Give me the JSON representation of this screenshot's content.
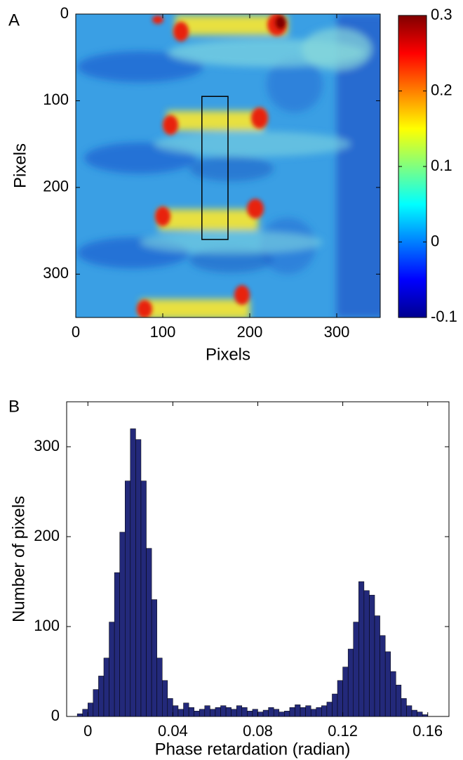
{
  "chart_data": [
    {
      "type": "heatmap",
      "panel_label": "A",
      "x_label": "Pixels",
      "y_label": "Pixels",
      "xlim": [
        0,
        350
      ],
      "ylim": [
        0,
        350
      ],
      "y_inverted": true,
      "xticks": [
        0,
        100,
        200,
        300
      ],
      "yticks": [
        0,
        100,
        200,
        300
      ],
      "colorbar": {
        "lim": [
          -0.1,
          0.3
        ],
        "ticks": [
          -0.1,
          0,
          0.1,
          0.2,
          0.3
        ]
      },
      "roi": {
        "x": [
          145,
          175
        ],
        "y": [
          95,
          260
        ],
        "color": "#000000"
      }
    },
    {
      "type": "histogram",
      "panel_label": "B",
      "x_label": "Phase retardation (radian)",
      "y_label": "Number of pixels",
      "xlim": [
        -0.01,
        0.17
      ],
      "ylim": [
        0,
        350
      ],
      "xticks": [
        0,
        0.04,
        0.08,
        0.12,
        0.16
      ],
      "yticks": [
        0,
        100,
        200,
        300
      ],
      "color": "#23297a",
      "bins": [
        -0.005,
        -0.0025,
        0,
        0.0025,
        0.005,
        0.0075,
        0.01,
        0.0125,
        0.015,
        0.0175,
        0.02,
        0.0225,
        0.025,
        0.0275,
        0.03,
        0.0325,
        0.035,
        0.0375,
        0.04,
        0.0425,
        0.045,
        0.0475,
        0.05,
        0.0525,
        0.055,
        0.0575,
        0.06,
        0.0625,
        0.065,
        0.0675,
        0.07,
        0.0725,
        0.075,
        0.0775,
        0.08,
        0.0825,
        0.085,
        0.0875,
        0.09,
        0.0925,
        0.095,
        0.0975,
        0.1,
        0.1025,
        0.105,
        0.1075,
        0.11,
        0.1125,
        0.115,
        0.1175,
        0.12,
        0.1225,
        0.125,
        0.1275,
        0.13,
        0.1325,
        0.135,
        0.1375,
        0.14,
        0.1425,
        0.145,
        0.1475,
        0.15,
        0.1525,
        0.155,
        0.1575,
        0.16
      ],
      "values": [
        3,
        8,
        15,
        30,
        45,
        65,
        105,
        160,
        205,
        262,
        320,
        308,
        262,
        187,
        130,
        65,
        40,
        20,
        12,
        8,
        15,
        10,
        6,
        8,
        12,
        8,
        10,
        12,
        10,
        8,
        12,
        10,
        6,
        8,
        5,
        7,
        10,
        8,
        5,
        6,
        10,
        13,
        10,
        12,
        8,
        10,
        12,
        16,
        25,
        40,
        55,
        75,
        105,
        150,
        140,
        135,
        112,
        90,
        72,
        50,
        35,
        20,
        12,
        7,
        5,
        2
      ]
    }
  ]
}
